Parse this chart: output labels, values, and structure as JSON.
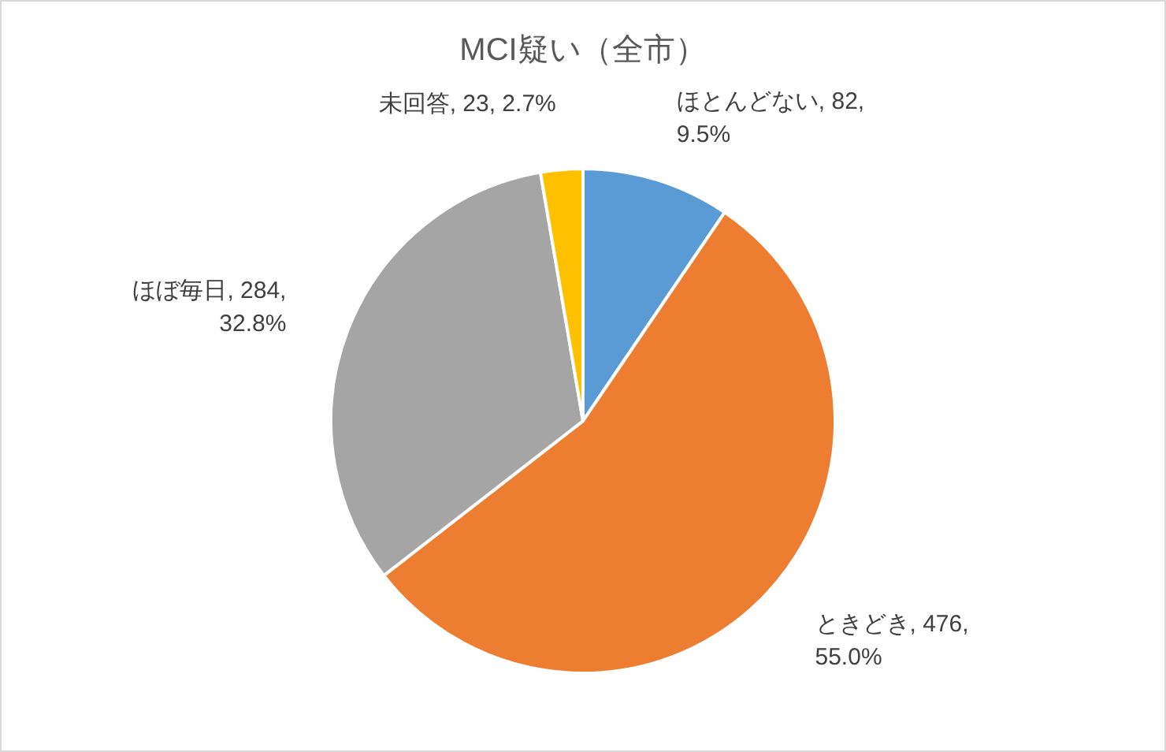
{
  "chart_data": {
    "type": "pie",
    "title": "MCI疑い（全市）",
    "categories": [
      "ほとんどない",
      "ときどき",
      "ほぼ毎日",
      "未回答"
    ],
    "values": [
      9.5,
      55.0,
      32.8,
      2.7
    ],
    "colors": [
      "#5b9bd5",
      "#ed7d31",
      "#a5a5a5",
      "#ffc000"
    ],
    "value_labels": [
      "82, 9.5%",
      "476, 55.0%",
      "284, 32.8%",
      "23, 2.7%"
    ]
  }
}
